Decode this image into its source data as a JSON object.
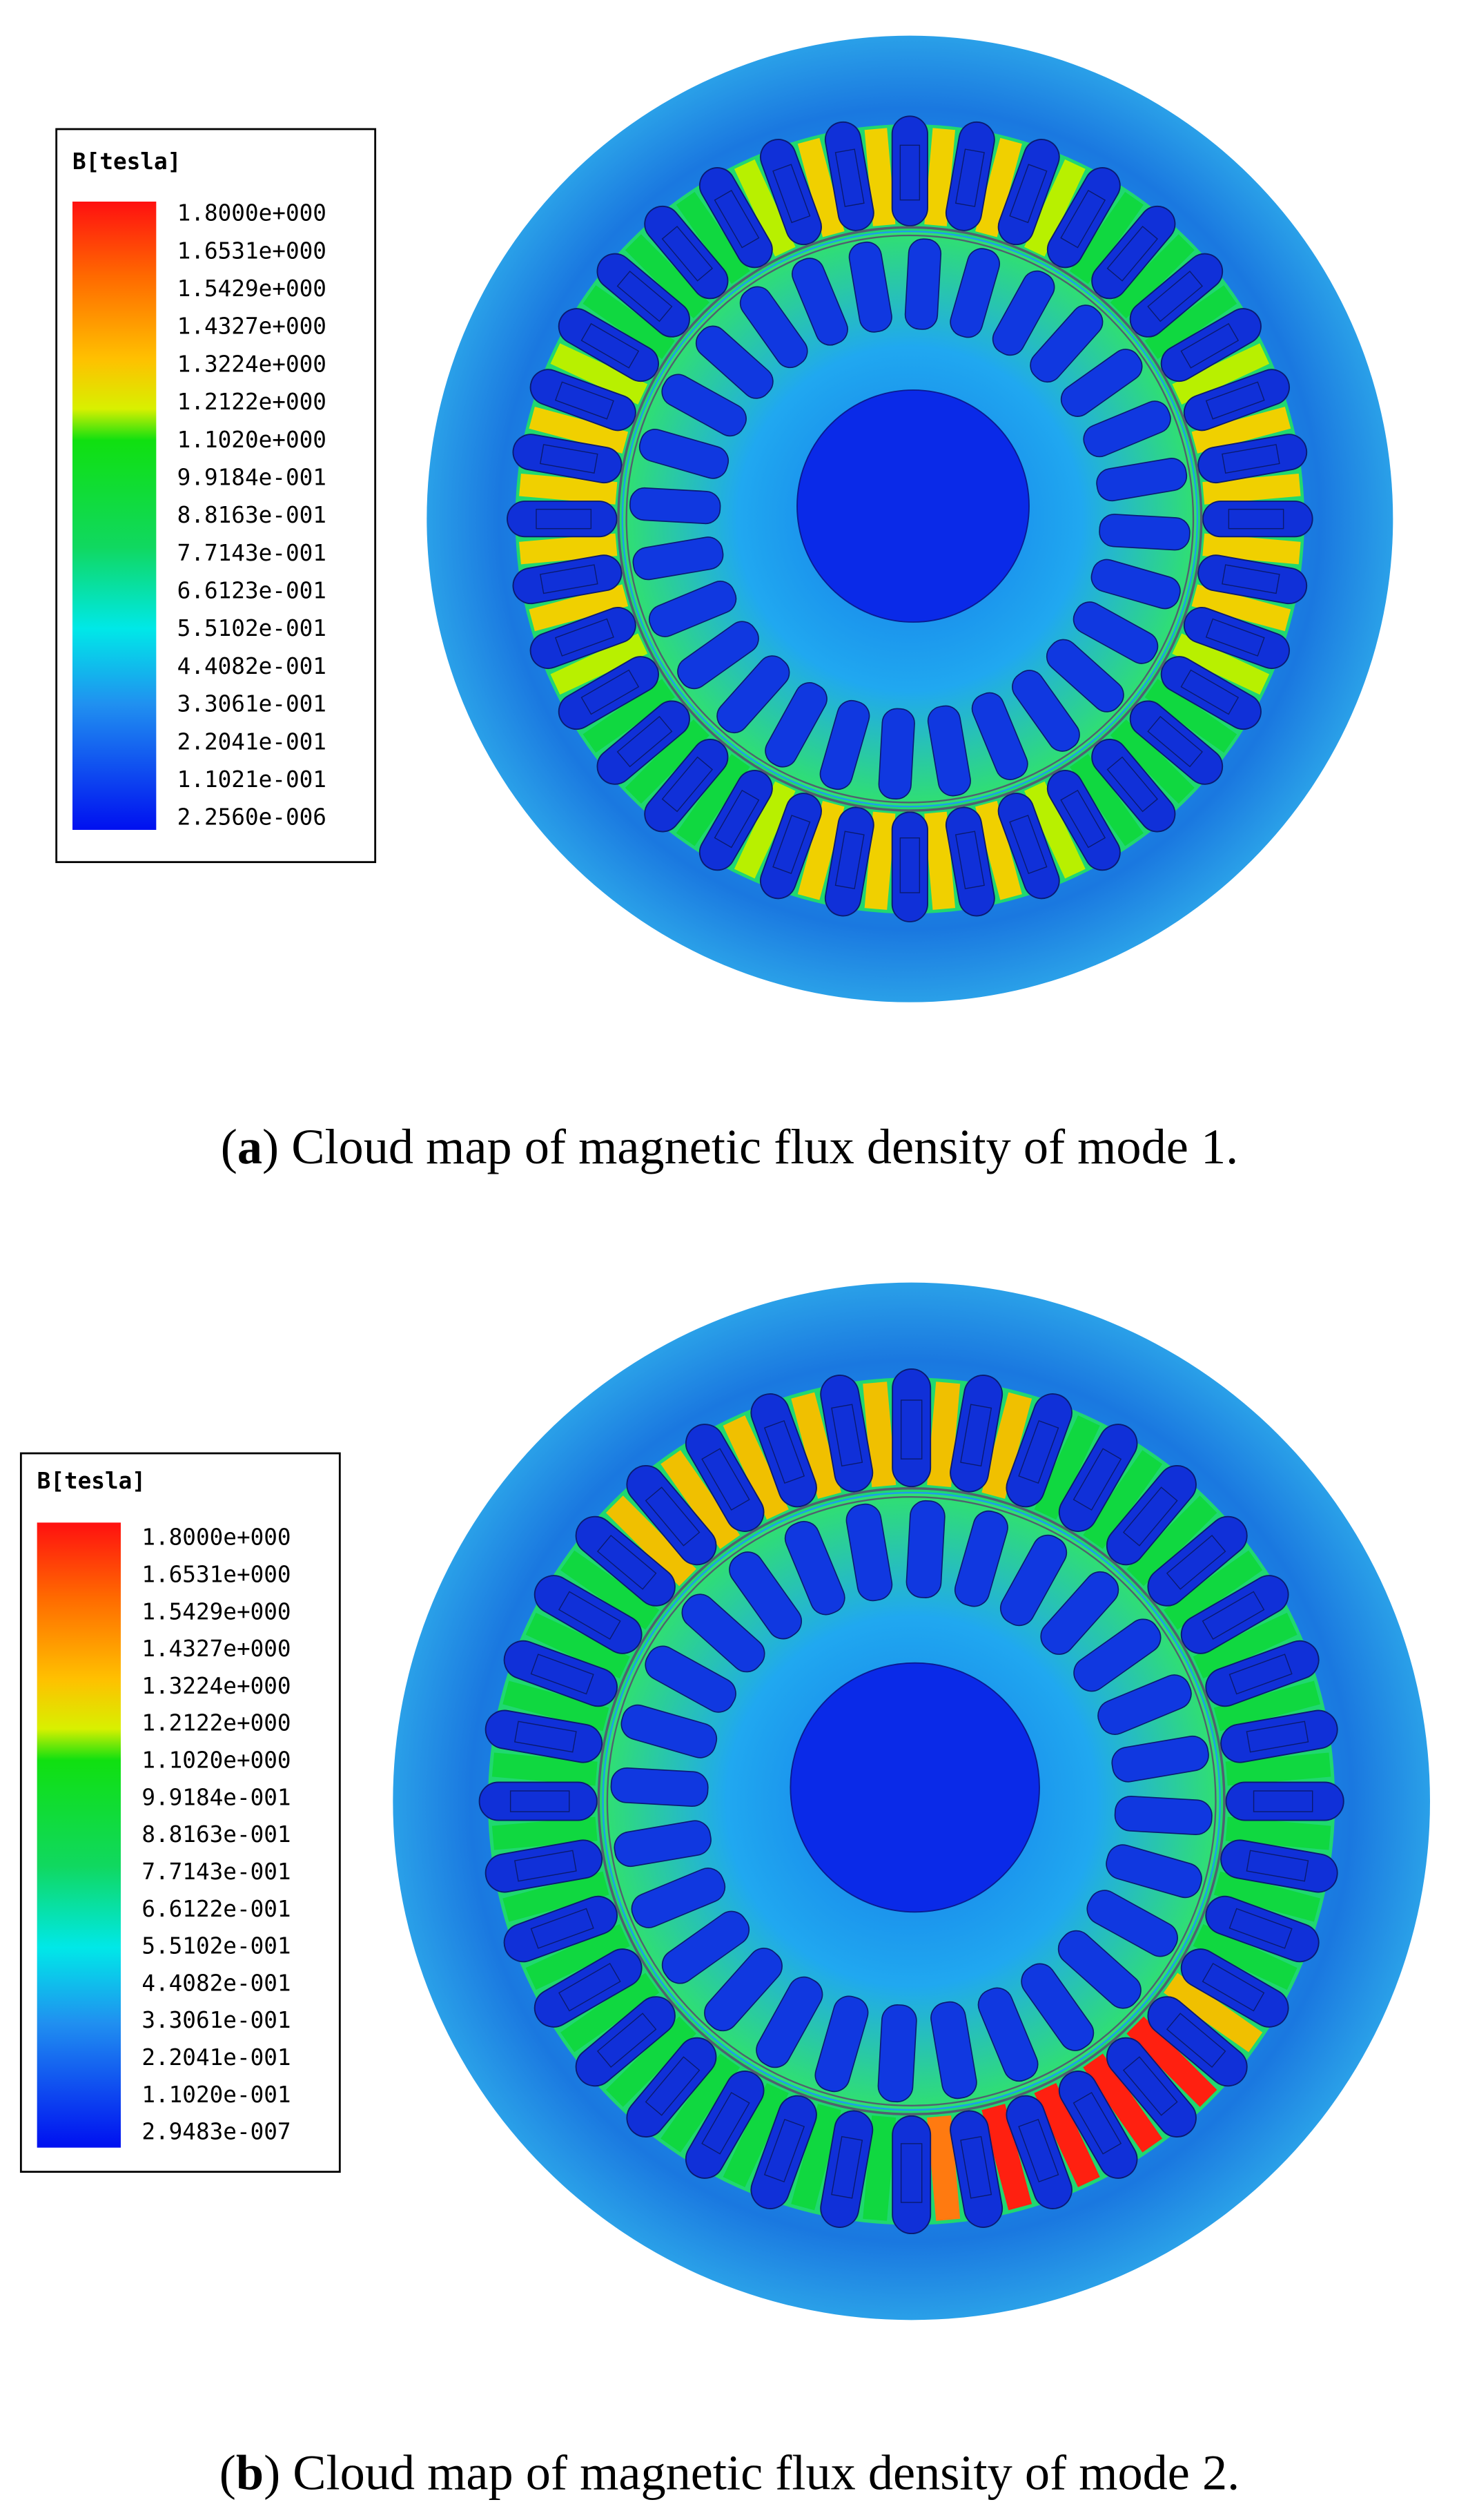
{
  "panels": [
    {
      "legend": {
        "title": "B[tesla]",
        "labels": [
          "1.8000e+000",
          "1.6531e+000",
          "1.5429e+000",
          "1.4327e+000",
          "1.3224e+000",
          "1.2122e+000",
          "1.1020e+000",
          "9.9184e-001",
          "8.8163e-001",
          "7.7143e-001",
          "6.6123e-001",
          "5.5102e-001",
          "4.4082e-001",
          "3.3061e-001",
          "2.2041e-001",
          "1.1021e-001",
          "2.2560e-006"
        ]
      },
      "caption": {
        "open": "(",
        "label": "a",
        "text": ") Cloud map of magnetic flux density of mode 1."
      }
    },
    {
      "legend": {
        "title": "B[tesla]",
        "labels": [
          "1.8000e+000",
          "1.6531e+000",
          "1.5429e+000",
          "1.4327e+000",
          "1.3224e+000",
          "1.2122e+000",
          "1.1020e+000",
          "9.9184e-001",
          "8.8163e-001",
          "7.7143e-001",
          "6.6122e-001",
          "5.5102e-001",
          "4.4082e-001",
          "3.3061e-001",
          "2.2041e-001",
          "1.1020e-001",
          "2.9483e-007"
        ]
      },
      "caption": {
        "open": "(",
        "label": "b",
        "text": ") Cloud map of magnetic flux density of mode 2."
      }
    }
  ]
}
